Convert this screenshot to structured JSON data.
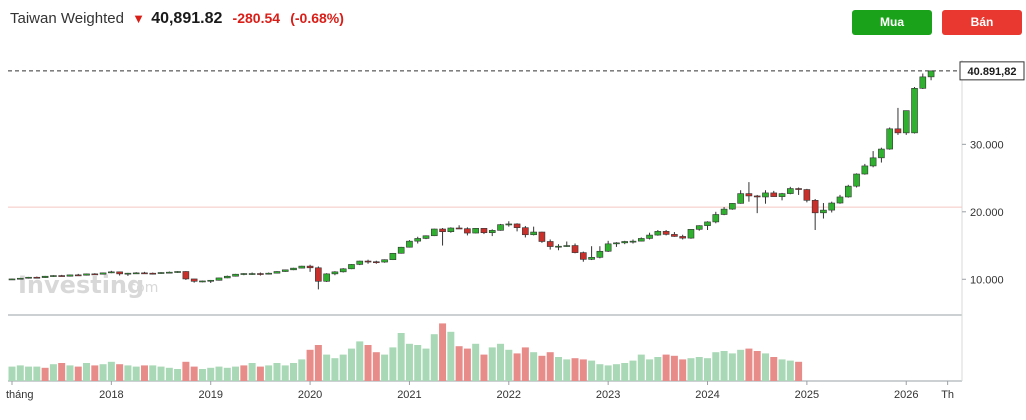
{
  "header": {
    "instrument": "Taiwan Weighted",
    "direction_icon": "down-arrow-icon",
    "price": "40,891.82",
    "change": "-280.54",
    "change_pct": "(-0.68%)",
    "buy_label": "Mua",
    "sell_label": "Bán"
  },
  "watermark": {
    "brand": "Investing",
    "suffix": ".com"
  },
  "colors": {
    "up": "#2fb12f",
    "down": "#c9302c",
    "vol_up": "#a8d8b5",
    "vol_down": "#e88c8a"
  },
  "chart_data": {
    "type": "candlestick",
    "period": "monthly",
    "last_price_label": "40.891,82",
    "y_ticks": [
      {
        "value": 10000,
        "label": "10.000"
      },
      {
        "value": 20000,
        "label": "20.000"
      },
      {
        "value": 30000,
        "label": "30.000"
      }
    ],
    "x_labels": [
      {
        "month": 0,
        "label": "tháng"
      },
      {
        "month": 12,
        "label": "2018"
      },
      {
        "month": 24,
        "label": "2019"
      },
      {
        "month": 36,
        "label": "2020"
      },
      {
        "month": 48,
        "label": "2021"
      },
      {
        "month": 60,
        "label": "2022"
      },
      {
        "month": 72,
        "label": "2023"
      },
      {
        "month": 84,
        "label": "2024"
      },
      {
        "month": 96,
        "label": "2025"
      },
      {
        "month": 108,
        "label": "2026"
      },
      {
        "month": 113,
        "label": "Th"
      }
    ],
    "ylim": [
      5000,
      42500
    ],
    "reference_line": 20700,
    "candles": [
      [
        9950,
        10100,
        9900,
        10050
      ],
      [
        10050,
        10200,
        10000,
        10150
      ],
      [
        10150,
        10350,
        10100,
        10300
      ],
      [
        10300,
        10400,
        10150,
        10250
      ],
      [
        10250,
        10500,
        10200,
        10450
      ],
      [
        10450,
        10600,
        10350,
        10550
      ],
      [
        10550,
        10650,
        10400,
        10450
      ],
      [
        10450,
        10700,
        10400,
        10650
      ],
      [
        10650,
        10800,
        10550,
        10600
      ],
      [
        10600,
        10850,
        10550,
        10800
      ],
      [
        10800,
        10900,
        10700,
        10750
      ],
      [
        10750,
        11000,
        10700,
        10950
      ],
      [
        10950,
        11250,
        10900,
        11100
      ],
      [
        11100,
        11150,
        10550,
        10800
      ],
      [
        10800,
        10950,
        10500,
        10900
      ],
      [
        10900,
        11050,
        10800,
        10950
      ],
      [
        10950,
        11100,
        10800,
        10900
      ],
      [
        10900,
        11000,
        10700,
        10850
      ],
      [
        10850,
        11050,
        10800,
        11000
      ],
      [
        11000,
        11150,
        10900,
        11050
      ],
      [
        11050,
        11200,
        10950,
        11150
      ],
      [
        11150,
        11200,
        9900,
        10050
      ],
      [
        10050,
        10050,
        9500,
        9700
      ],
      [
        9700,
        9800,
        9550,
        9750
      ],
      [
        9750,
        9900,
        9450,
        9850
      ],
      [
        9850,
        10250,
        9800,
        10200
      ],
      [
        10200,
        10550,
        10150,
        10450
      ],
      [
        10450,
        10800,
        10400,
        10750
      ],
      [
        10750,
        10900,
        10600,
        10850
      ],
      [
        10850,
        11000,
        10650,
        10850
      ],
      [
        10850,
        11000,
        10550,
        10750
      ],
      [
        10750,
        11000,
        10700,
        10900
      ],
      [
        10900,
        11200,
        10850,
        11150
      ],
      [
        11150,
        11450,
        11100,
        11400
      ],
      [
        11400,
        11700,
        11350,
        11650
      ],
      [
        11650,
        12000,
        11600,
        11950
      ],
      [
        11950,
        12150,
        11100,
        11700
      ],
      [
        11700,
        11900,
        8500,
        9700
      ],
      [
        9700,
        10900,
        9600,
        10800
      ],
      [
        10800,
        11200,
        10600,
        11100
      ],
      [
        11100,
        11650,
        11000,
        11550
      ],
      [
        11550,
        12250,
        11500,
        12200
      ],
      [
        12200,
        12750,
        12100,
        12700
      ],
      [
        12700,
        12900,
        12300,
        12600
      ],
      [
        12600,
        12750,
        12300,
        12550
      ],
      [
        12550,
        12950,
        12450,
        12900
      ],
      [
        12900,
        13900,
        12850,
        13850
      ],
      [
        13850,
        14800,
        13800,
        14750
      ],
      [
        14750,
        15800,
        14700,
        15650
      ],
      [
        15650,
        16300,
        15300,
        16050
      ],
      [
        16050,
        16500,
        15950,
        16450
      ],
      [
        16450,
        17500,
        16400,
        17450
      ],
      [
        17450,
        17600,
        15000,
        17050
      ],
      [
        17050,
        17700,
        16900,
        17600
      ],
      [
        17600,
        18000,
        17500,
        17500
      ],
      [
        17500,
        17700,
        16500,
        16850
      ],
      [
        16850,
        17600,
        16800,
        17550
      ],
      [
        17550,
        17500,
        16700,
        16900
      ],
      [
        16900,
        17400,
        16400,
        17250
      ],
      [
        17250,
        18200,
        17200,
        18100
      ],
      [
        18100,
        18600,
        17800,
        18200
      ],
      [
        18200,
        18300,
        17100,
        17650
      ],
      [
        17650,
        17900,
        16200,
        16600
      ],
      [
        16600,
        17800,
        16500,
        17000
      ],
      [
        17000,
        17050,
        15400,
        15600
      ],
      [
        15600,
        15900,
        14400,
        14850
      ],
      [
        14850,
        15200,
        14300,
        14900
      ],
      [
        14900,
        15600,
        14800,
        15000
      ],
      [
        15000,
        15300,
        13850,
        13950
      ],
      [
        13950,
        14100,
        12600,
        12950
      ],
      [
        12950,
        14900,
        12850,
        13250
      ],
      [
        13250,
        14900,
        13100,
        14150
      ],
      [
        14150,
        15700,
        14050,
        15250
      ],
      [
        15250,
        15500,
        14800,
        15400
      ],
      [
        15400,
        15700,
        15200,
        15600
      ],
      [
        15600,
        15900,
        15300,
        15650
      ],
      [
        15650,
        16200,
        15600,
        16050
      ],
      [
        16050,
        16900,
        15900,
        16550
      ],
      [
        16550,
        17300,
        16450,
        17100
      ],
      [
        17100,
        17300,
        16500,
        16650
      ],
      [
        16650,
        17000,
        16300,
        16350
      ],
      [
        16350,
        16600,
        15900,
        16100
      ],
      [
        16100,
        17450,
        16000,
        17400
      ],
      [
        17400,
        18000,
        17200,
        17950
      ],
      [
        17950,
        18600,
        17300,
        18500
      ],
      [
        18500,
        20000,
        18300,
        19600
      ],
      [
        19600,
        20700,
        19500,
        20400
      ],
      [
        20400,
        21300,
        20300,
        21250
      ],
      [
        21250,
        23200,
        21200,
        22700
      ],
      [
        22700,
        24400,
        21500,
        22350
      ],
      [
        22350,
        22500,
        19800,
        22200
      ],
      [
        22200,
        23200,
        21200,
        22800
      ],
      [
        22800,
        23100,
        22300,
        22250
      ],
      [
        22250,
        22800,
        21700,
        22700
      ],
      [
        22700,
        23700,
        22600,
        23450
      ],
      [
        23450,
        23600,
        22500,
        23300
      ],
      [
        23300,
        23400,
        21400,
        21700
      ],
      [
        21700,
        21900,
        17300,
        19850
      ],
      [
        19850,
        21300,
        19000,
        20250
      ],
      [
        20250,
        21500,
        19900,
        21300
      ],
      [
        21300,
        22500,
        21200,
        22200
      ],
      [
        22200,
        24000,
        22100,
        23800
      ],
      [
        23800,
        25700,
        23600,
        25600
      ],
      [
        25600,
        27100,
        25500,
        26800
      ],
      [
        26800,
        29000,
        26600,
        28000
      ],
      [
        28000,
        29500,
        27300,
        29300
      ],
      [
        29300,
        32500,
        29200,
        32300
      ],
      [
        32300,
        35400,
        31400,
        31700
      ],
      [
        31700,
        35000,
        31400,
        35000
      ],
      [
        31700,
        38500,
        31600,
        38300
      ],
      [
        38300,
        40500,
        38200,
        40000
      ],
      [
        40000,
        40891,
        39500,
        40891
      ]
    ],
    "volume": [
      [
        0.12,
        1
      ],
      [
        0.13,
        1
      ],
      [
        0.12,
        1
      ],
      [
        0.12,
        1
      ],
      [
        0.11,
        0
      ],
      [
        0.14,
        1
      ],
      [
        0.15,
        0
      ],
      [
        0.13,
        1
      ],
      [
        0.12,
        0
      ],
      [
        0.15,
        1
      ],
      [
        0.13,
        0
      ],
      [
        0.14,
        1
      ],
      [
        0.16,
        1
      ],
      [
        0.14,
        0
      ],
      [
        0.13,
        1
      ],
      [
        0.12,
        1
      ],
      [
        0.13,
        0
      ],
      [
        0.13,
        1
      ],
      [
        0.12,
        1
      ],
      [
        0.11,
        1
      ],
      [
        0.1,
        1
      ],
      [
        0.16,
        0
      ],
      [
        0.12,
        0
      ],
      [
        0.1,
        1
      ],
      [
        0.11,
        1
      ],
      [
        0.12,
        1
      ],
      [
        0.11,
        1
      ],
      [
        0.12,
        1
      ],
      [
        0.13,
        0
      ],
      [
        0.15,
        1
      ],
      [
        0.12,
        0
      ],
      [
        0.13,
        1
      ],
      [
        0.15,
        1
      ],
      [
        0.13,
        1
      ],
      [
        0.15,
        1
      ],
      [
        0.18,
        1
      ],
      [
        0.26,
        0
      ],
      [
        0.3,
        0
      ],
      [
        0.22,
        1
      ],
      [
        0.19,
        1
      ],
      [
        0.22,
        1
      ],
      [
        0.27,
        1
      ],
      [
        0.33,
        1
      ],
      [
        0.3,
        0
      ],
      [
        0.24,
        0
      ],
      [
        0.22,
        1
      ],
      [
        0.28,
        1
      ],
      [
        0.4,
        1
      ],
      [
        0.31,
        1
      ],
      [
        0.3,
        1
      ],
      [
        0.27,
        1
      ],
      [
        0.39,
        1
      ],
      [
        0.48,
        0
      ],
      [
        0.41,
        1
      ],
      [
        0.29,
        0
      ],
      [
        0.27,
        0
      ],
      [
        0.31,
        1
      ],
      [
        0.22,
        0
      ],
      [
        0.28,
        1
      ],
      [
        0.31,
        1
      ],
      [
        0.26,
        1
      ],
      [
        0.23,
        0
      ],
      [
        0.28,
        0
      ],
      [
        0.24,
        1
      ],
      [
        0.21,
        0
      ],
      [
        0.24,
        0
      ],
      [
        0.2,
        1
      ],
      [
        0.18,
        1
      ],
      [
        0.19,
        0
      ],
      [
        0.18,
        0
      ],
      [
        0.17,
        1
      ],
      [
        0.14,
        1
      ],
      [
        0.13,
        1
      ],
      [
        0.14,
        1
      ],
      [
        0.15,
        1
      ],
      [
        0.17,
        1
      ],
      [
        0.22,
        1
      ],
      [
        0.18,
        1
      ],
      [
        0.2,
        1
      ],
      [
        0.22,
        0
      ],
      [
        0.21,
        0
      ],
      [
        0.18,
        0
      ],
      [
        0.19,
        1
      ],
      [
        0.2,
        1
      ],
      [
        0.19,
        1
      ],
      [
        0.24,
        1
      ],
      [
        0.25,
        1
      ],
      [
        0.23,
        1
      ],
      [
        0.26,
        1
      ],
      [
        0.27,
        0
      ],
      [
        0.25,
        0
      ],
      [
        0.23,
        1
      ],
      [
        0.2,
        0
      ],
      [
        0.18,
        1
      ],
      [
        0.17,
        1
      ],
      [
        0.16,
        0
      ]
    ]
  }
}
